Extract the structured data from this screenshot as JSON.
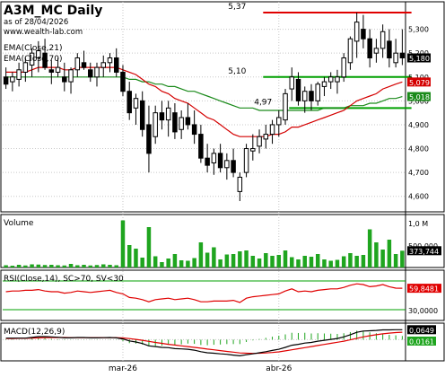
{
  "header": {
    "title": "A3M_MC Daily",
    "asof": "as of 28/04/2026",
    "site": "www.wealth-lab.com"
  },
  "colors": {
    "up": "#ffffff",
    "down": "#000000",
    "ema21": "#d40000",
    "ema70": "#1a8a1a",
    "resistance": "#e00000",
    "support": "#00a000",
    "volume": "#1fa51f",
    "rsi": "#e00000",
    "macd": "#000000",
    "signal": "#e00000",
    "hist": "#1fa51f"
  },
  "chart_data": [
    {
      "type": "candlestick",
      "legend": [
        "EMA(Close,21)",
        "EMA(Close,70)"
      ],
      "ylim": [
        4.55,
        5.4
      ],
      "yticks": [
        "5,300",
        "5,200",
        "5,100",
        "5,000",
        "4,900",
        "4,800",
        "4,700",
        "4,600"
      ],
      "xlabels": [
        {
          "label": "mar-26",
          "index": 18
        },
        {
          "label": "abr-26",
          "index": 42
        }
      ],
      "levels": [
        {
          "label": "5,37",
          "value": 5.37,
          "kind": "resistance",
          "from": 40,
          "to": 62
        },
        {
          "label": "5,10",
          "value": 5.1,
          "kind": "support",
          "from": 40,
          "to": 62
        },
        {
          "label": "4,97",
          "value": 4.97,
          "kind": "support",
          "from": 44,
          "to": 62
        }
      ],
      "last_labels": [
        {
          "label": "5,180",
          "value": 5.18,
          "color": "#000000"
        },
        {
          "label": "5,079",
          "value": 5.079,
          "color": "#d40000"
        },
        {
          "label": "5,018",
          "value": 5.018,
          "color": "#1a8a1a"
        }
      ],
      "ohlc": [
        [
          5.1,
          5.14,
          5.05,
          5.07
        ],
        [
          5.08,
          5.12,
          5.04,
          5.1
        ],
        [
          5.09,
          5.16,
          5.06,
          5.13
        ],
        [
          5.12,
          5.18,
          5.08,
          5.16
        ],
        [
          5.15,
          5.22,
          5.1,
          5.2
        ],
        [
          5.18,
          5.25,
          5.12,
          5.21
        ],
        [
          5.2,
          5.26,
          5.13,
          5.14
        ],
        [
          5.13,
          5.17,
          5.07,
          5.12
        ],
        [
          5.12,
          5.18,
          5.1,
          5.14
        ],
        [
          5.1,
          5.16,
          5.04,
          5.08
        ],
        [
          5.08,
          5.14,
          5.03,
          5.13
        ],
        [
          5.13,
          5.2,
          5.1,
          5.18
        ],
        [
          5.16,
          5.21,
          5.13,
          5.14
        ],
        [
          5.13,
          5.16,
          5.08,
          5.1
        ],
        [
          5.1,
          5.16,
          5.06,
          5.14
        ],
        [
          5.14,
          5.19,
          5.1,
          5.16
        ],
        [
          5.16,
          5.2,
          5.12,
          5.18
        ],
        [
          5.18,
          5.22,
          5.1,
          5.12
        ],
        [
          5.12,
          5.15,
          5.02,
          5.04
        ],
        [
          5.04,
          5.08,
          4.92,
          4.95
        ],
        [
          4.97,
          5.03,
          4.9,
          5.01
        ],
        [
          5.0,
          5.04,
          4.85,
          4.88
        ],
        [
          4.9,
          4.98,
          4.7,
          4.78
        ],
        [
          4.85,
          4.98,
          4.82,
          4.95
        ],
        [
          4.95,
          5.0,
          4.88,
          4.92
        ],
        [
          4.92,
          5.0,
          4.85,
          4.97
        ],
        [
          4.95,
          4.99,
          4.84,
          4.87
        ],
        [
          4.88,
          4.96,
          4.84,
          4.93
        ],
        [
          4.93,
          4.99,
          4.88,
          4.9
        ],
        [
          4.9,
          4.96,
          4.82,
          4.86
        ],
        [
          4.86,
          4.9,
          4.74,
          4.76
        ],
        [
          4.76,
          4.82,
          4.7,
          4.73
        ],
        [
          4.74,
          4.8,
          4.69,
          4.78
        ],
        [
          4.78,
          4.82,
          4.7,
          4.72
        ],
        [
          4.72,
          4.78,
          4.67,
          4.75
        ],
        [
          4.75,
          4.8,
          4.68,
          4.7
        ],
        [
          4.62,
          4.7,
          4.58,
          4.68
        ],
        [
          4.7,
          4.82,
          4.68,
          4.8
        ],
        [
          4.79,
          4.86,
          4.75,
          4.8
        ],
        [
          4.81,
          4.88,
          4.78,
          4.85
        ],
        [
          4.84,
          4.9,
          4.8,
          4.86
        ],
        [
          4.86,
          4.92,
          4.82,
          4.9
        ],
        [
          4.9,
          4.96,
          4.85,
          4.93
        ],
        [
          4.92,
          5.05,
          4.9,
          5.03
        ],
        [
          5.05,
          5.14,
          5.0,
          5.1
        ],
        [
          5.09,
          5.12,
          4.98,
          5.0
        ],
        [
          5.0,
          5.06,
          4.95,
          5.04
        ],
        [
          5.04,
          5.07,
          4.96,
          5.0
        ],
        [
          5.0,
          5.08,
          4.98,
          5.07
        ],
        [
          5.06,
          5.1,
          5.02,
          5.08
        ],
        [
          5.08,
          5.12,
          5.05,
          5.1
        ],
        [
          5.08,
          5.13,
          5.03,
          5.1
        ],
        [
          5.1,
          5.2,
          5.08,
          5.18
        ],
        [
          5.16,
          5.27,
          5.13,
          5.26
        ],
        [
          5.25,
          5.37,
          5.18,
          5.33
        ],
        [
          5.3,
          5.36,
          5.22,
          5.26
        ],
        [
          5.26,
          5.3,
          5.14,
          5.18
        ],
        [
          5.2,
          5.26,
          5.16,
          5.22
        ],
        [
          5.22,
          5.32,
          5.18,
          5.29
        ],
        [
          5.25,
          5.3,
          5.14,
          5.18
        ],
        [
          5.16,
          5.26,
          5.14,
          5.2
        ],
        [
          5.2,
          5.3,
          5.15,
          5.18
        ]
      ],
      "ema21": [
        5.12,
        5.12,
        5.12,
        5.12,
        5.13,
        5.14,
        5.14,
        5.14,
        5.14,
        5.13,
        5.13,
        5.14,
        5.14,
        5.14,
        5.14,
        5.14,
        5.14,
        5.14,
        5.13,
        5.12,
        5.11,
        5.09,
        5.07,
        5.06,
        5.04,
        5.03,
        5.01,
        5.0,
        4.99,
        4.97,
        4.95,
        4.93,
        4.92,
        4.9,
        4.88,
        4.86,
        4.85,
        4.85,
        4.85,
        4.85,
        4.85,
        4.86,
        4.86,
        4.87,
        4.89,
        4.89,
        4.9,
        4.91,
        4.92,
        4.93,
        4.94,
        4.95,
        4.96,
        4.98,
        5.0,
        5.01,
        5.02,
        5.03,
        5.05,
        5.06,
        5.07,
        5.079
      ],
      "ema70": [
        5.1,
        5.1,
        5.1,
        5.1,
        5.1,
        5.1,
        5.1,
        5.1,
        5.1,
        5.1,
        5.1,
        5.1,
        5.1,
        5.1,
        5.1,
        5.1,
        5.1,
        5.1,
        5.1,
        5.09,
        5.09,
        5.08,
        5.08,
        5.07,
        5.07,
        5.06,
        5.06,
        5.05,
        5.04,
        5.04,
        5.03,
        5.02,
        5.01,
        5.0,
        4.99,
        4.98,
        4.97,
        4.97,
        4.97,
        4.96,
        4.96,
        4.96,
        4.96,
        4.96,
        4.96,
        4.96,
        4.96,
        4.96,
        4.96,
        4.97,
        4.97,
        4.97,
        4.97,
        4.98,
        4.98,
        4.98,
        4.99,
        4.99,
        5.0,
        5.01,
        5.01,
        5.018
      ]
    },
    {
      "type": "bar",
      "title": "Volume",
      "yticks": [
        "1,0 M",
        "500,000"
      ],
      "ylim": [
        0,
        1100000
      ],
      "last_label": "373,744",
      "values": [
        50000,
        40000,
        60000,
        45000,
        70000,
        65000,
        55000,
        60000,
        50000,
        45000,
        80000,
        50000,
        60000,
        45000,
        55000,
        70000,
        60000,
        50000,
        1050000,
        500000,
        420000,
        220000,
        900000,
        250000,
        120000,
        200000,
        300000,
        160000,
        150000,
        210000,
        560000,
        330000,
        450000,
        180000,
        290000,
        300000,
        360000,
        380000,
        260000,
        200000,
        320000,
        260000,
        280000,
        380000,
        230000,
        180000,
        260000,
        240000,
        300000,
        180000,
        150000,
        170000,
        250000,
        320000,
        260000,
        280000,
        850000,
        560000,
        400000,
        620000,
        300000,
        373744
      ]
    },
    {
      "type": "line",
      "title": "RSI(Close,14), SC>70, SV<30",
      "yticks": [
        "30,0000"
      ],
      "levels": [
        70,
        30
      ],
      "ylim": [
        20,
        80
      ],
      "last_label": "59,8481",
      "values": [
        55,
        56,
        56,
        57,
        57,
        58,
        56,
        55,
        55,
        53,
        54,
        56,
        55,
        54,
        55,
        56,
        57,
        54,
        52,
        47,
        46,
        44,
        41,
        44,
        45,
        46,
        44,
        45,
        46,
        44,
        41,
        41,
        42,
        42,
        42,
        43,
        40,
        46,
        48,
        49,
        50,
        51,
        52,
        56,
        59,
        55,
        56,
        55,
        57,
        58,
        59,
        59,
        61,
        64,
        66,
        65,
        62,
        63,
        65,
        62,
        60,
        59.8481
      ]
    },
    {
      "type": "line",
      "title": "MACD(12,26,9)",
      "last_labels": [
        "0,0649",
        "0,0161"
      ],
      "ylim": [
        -0.12,
        0.09
      ],
      "macd": [
        0.01,
        0.01,
        0.01,
        0.01,
        0.015,
        0.02,
        0.02,
        0.018,
        0.016,
        0.012,
        0.012,
        0.014,
        0.014,
        0.012,
        0.012,
        0.013,
        0.014,
        0.012,
        0.005,
        -0.008,
        -0.015,
        -0.025,
        -0.04,
        -0.045,
        -0.05,
        -0.052,
        -0.058,
        -0.06,
        -0.062,
        -0.068,
        -0.078,
        -0.085,
        -0.088,
        -0.092,
        -0.095,
        -0.1,
        -0.105,
        -0.098,
        -0.092,
        -0.085,
        -0.078,
        -0.07,
        -0.062,
        -0.05,
        -0.036,
        -0.03,
        -0.022,
        -0.018,
        -0.01,
        -0.004,
        0.002,
        0.008,
        0.018,
        0.032,
        0.048,
        0.056,
        0.058,
        0.06,
        0.064,
        0.064,
        0.065,
        0.0649
      ],
      "signal": [
        0.008,
        0.008,
        0.009,
        0.009,
        0.01,
        0.012,
        0.013,
        0.014,
        0.014,
        0.014,
        0.013,
        0.013,
        0.013,
        0.013,
        0.013,
        0.013,
        0.013,
        0.013,
        0.011,
        0.007,
        0.002,
        -0.004,
        -0.011,
        -0.018,
        -0.024,
        -0.03,
        -0.035,
        -0.04,
        -0.045,
        -0.05,
        -0.055,
        -0.061,
        -0.066,
        -0.071,
        -0.076,
        -0.081,
        -0.086,
        -0.088,
        -0.089,
        -0.088,
        -0.086,
        -0.083,
        -0.079,
        -0.073,
        -0.066,
        -0.059,
        -0.052,
        -0.045,
        -0.038,
        -0.031,
        -0.024,
        -0.017,
        -0.01,
        -0.001,
        0.009,
        0.018,
        0.026,
        0.032,
        0.038,
        0.043,
        0.046,
        0.0488
      ]
    }
  ]
}
